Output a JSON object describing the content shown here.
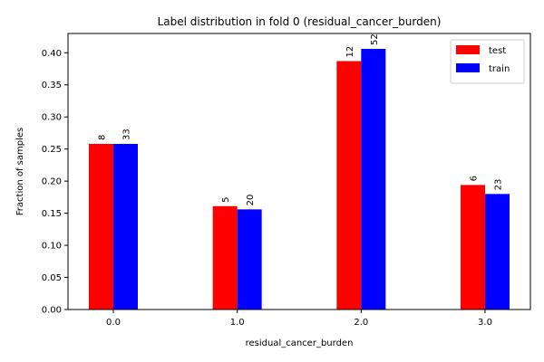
{
  "chart_data": {
    "type": "bar",
    "title": "Label distribution in fold 0 (residual_cancer_burden)",
    "xlabel": "residual_cancer_burden",
    "ylabel": "Fraction of samples",
    "categories": [
      "0.0",
      "1.0",
      "2.0",
      "3.0"
    ],
    "ylim": [
      0,
      0.43
    ],
    "yticks": [
      "0.00",
      "0.05",
      "0.10",
      "0.15",
      "0.20",
      "0.25",
      "0.30",
      "0.35",
      "0.40"
    ],
    "grid": false,
    "legend_position": "top-right",
    "series": [
      {
        "name": "test",
        "color": "#ff0000",
        "values": [
          0.258,
          0.161,
          0.387,
          0.194
        ],
        "labels": [
          "8",
          "5",
          "12",
          "6"
        ]
      },
      {
        "name": "train",
        "color": "#0000ff",
        "values": [
          0.258,
          0.156,
          0.406,
          0.18
        ],
        "labels": [
          "33",
          "20",
          "52",
          "23"
        ]
      }
    ]
  }
}
